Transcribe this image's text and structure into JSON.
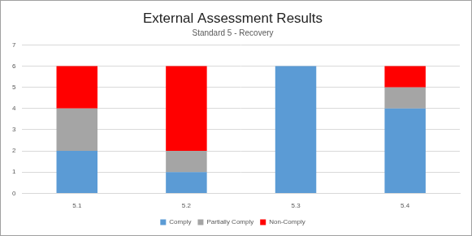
{
  "chart_data": {
    "type": "bar",
    "title": "External Assessment Results",
    "subtitle": "Standard 5 - Recovery",
    "categories": [
      "5.1",
      "5.2",
      "5.3",
      "5.4"
    ],
    "series": [
      {
        "name": "Comply",
        "color": "#5b9bd5",
        "values": [
          2,
          1,
          6,
          4
        ]
      },
      {
        "name": "Partially Comply",
        "color": "#a5a5a5",
        "values": [
          2,
          1,
          0,
          1
        ]
      },
      {
        "name": "Non-Comply",
        "color": "#ff0000",
        "values": [
          2,
          4,
          0,
          1
        ]
      }
    ],
    "ylim": [
      0,
      7
    ],
    "yticks": [
      0,
      1,
      2,
      3,
      4,
      5,
      6,
      7
    ],
    "stacked": true,
    "grid": true,
    "legend": "bottom"
  }
}
